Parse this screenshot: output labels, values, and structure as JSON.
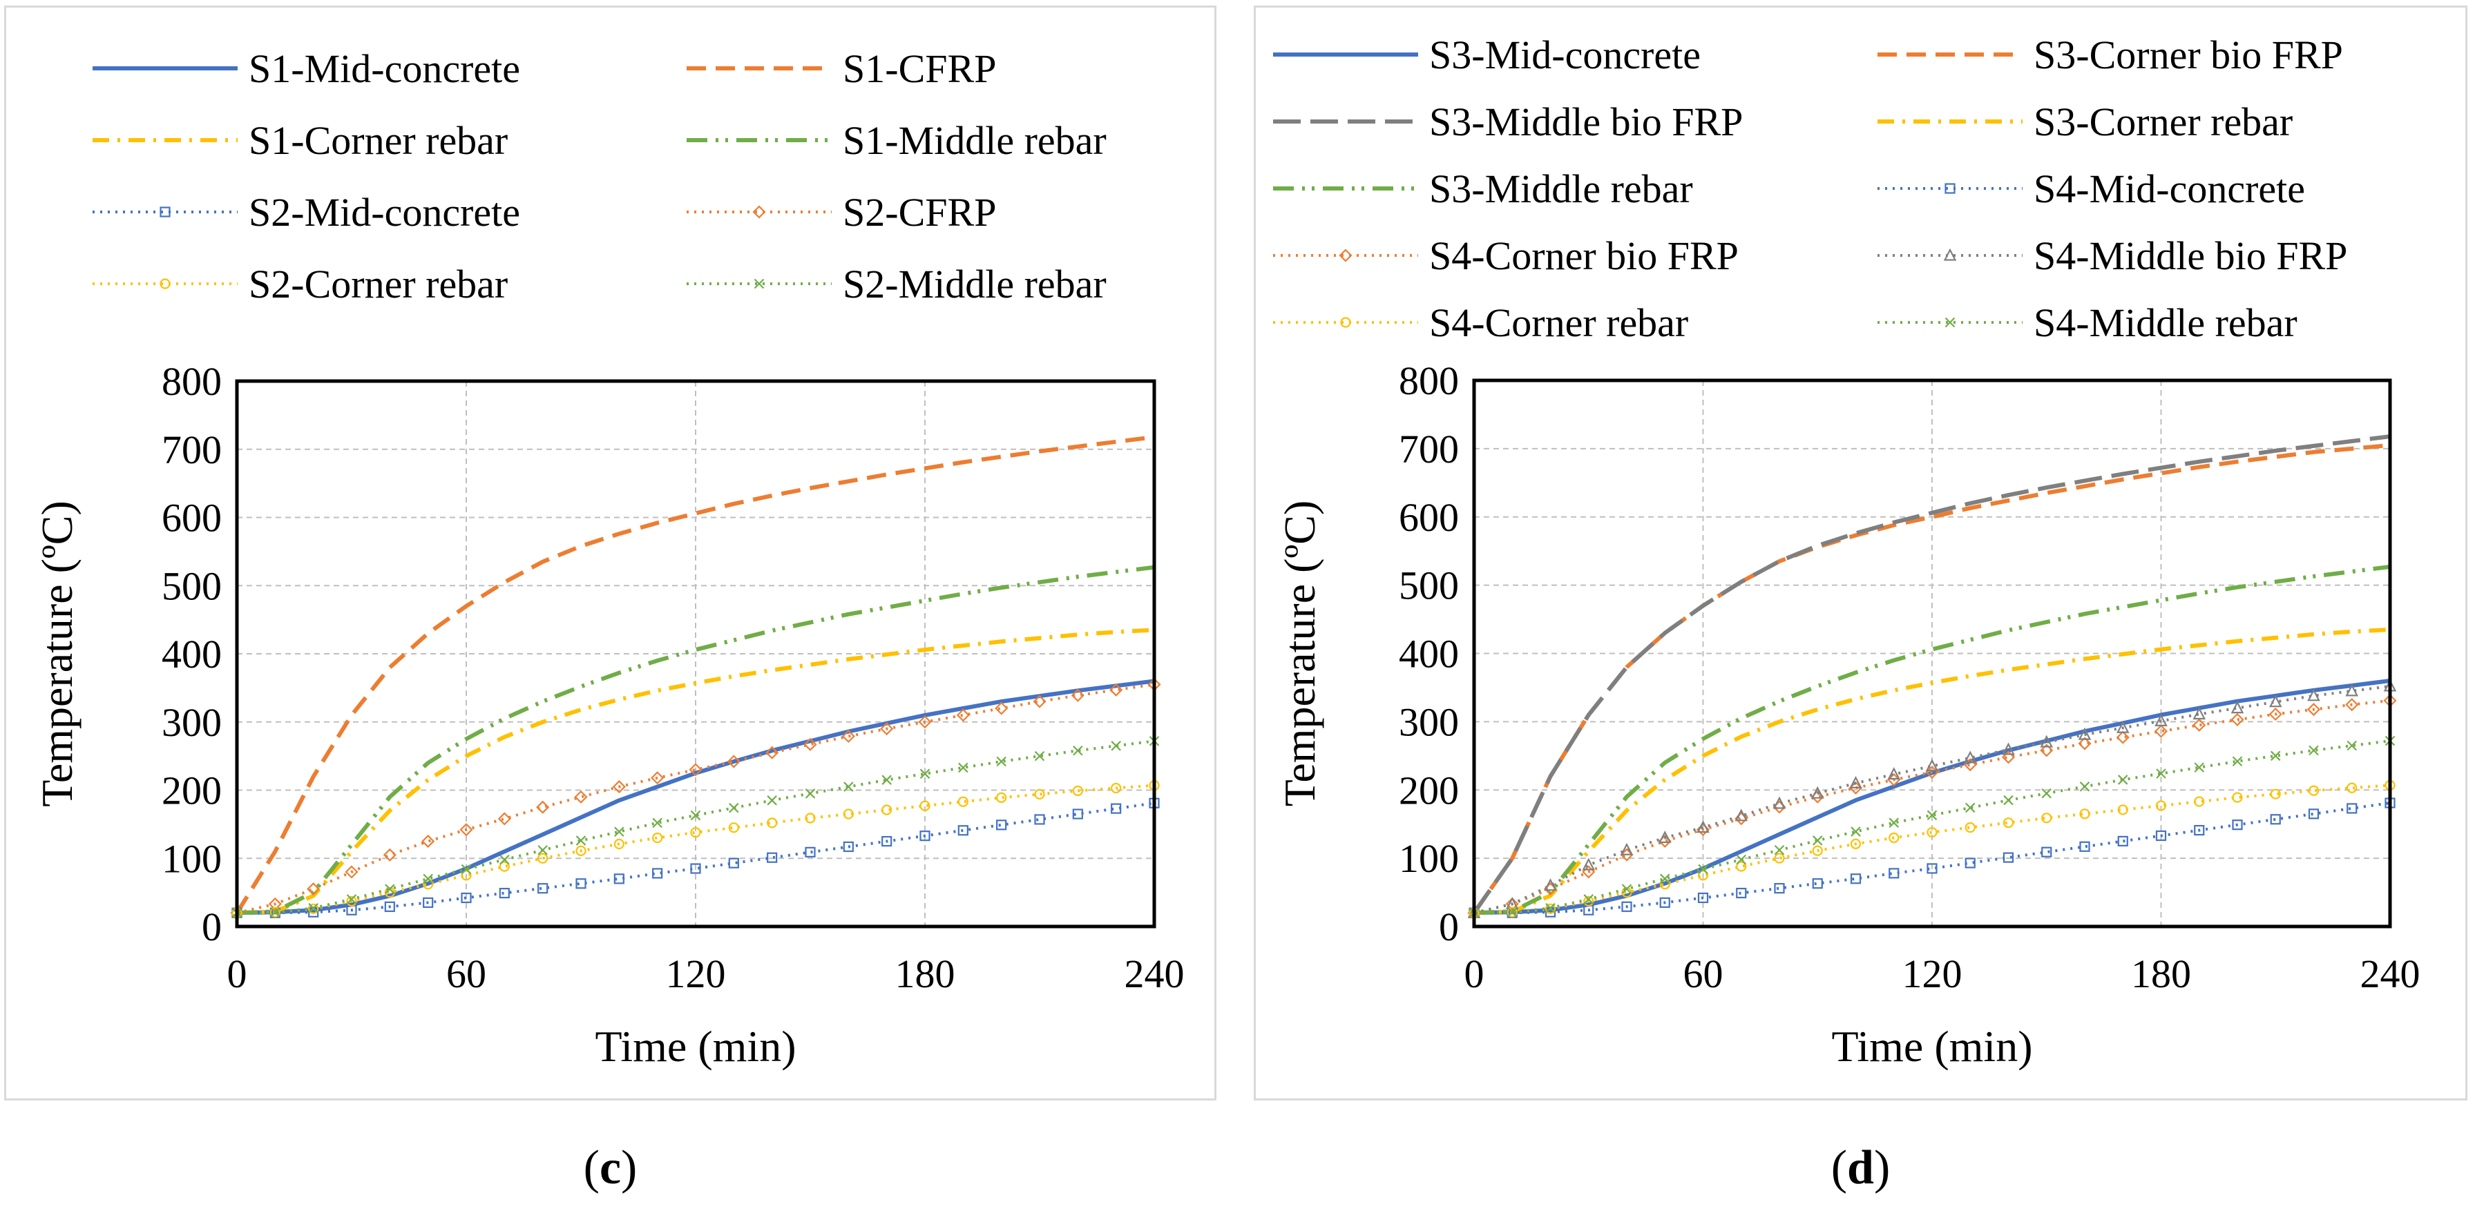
{
  "captions": {
    "c": "c",
    "d": "d"
  },
  "chart_data": [
    {
      "type": "line",
      "panel": "c",
      "xlabel": "Time (min)",
      "ylabel": "Temperature (ºC)",
      "xlim": [
        0,
        240
      ],
      "ylim": [
        0,
        800
      ],
      "xticks": [
        0,
        60,
        120,
        180,
        240
      ],
      "yticks": [
        0,
        100,
        200,
        300,
        400,
        500,
        600,
        700,
        800
      ],
      "grid": true,
      "legend_position": "top",
      "x": [
        0,
        10,
        20,
        30,
        40,
        50,
        60,
        70,
        80,
        90,
        100,
        110,
        120,
        130,
        140,
        150,
        160,
        170,
        180,
        190,
        200,
        210,
        220,
        230,
        240
      ],
      "series": [
        {
          "name": "S1-Mid-concrete",
          "color": "#4472c4",
          "style": "solid",
          "values": [
            20,
            21,
            24,
            32,
            45,
            63,
            85,
            110,
            135,
            160,
            185,
            205,
            225,
            242,
            258,
            272,
            286,
            298,
            310,
            320,
            330,
            338,
            346,
            353,
            360
          ]
        },
        {
          "name": "S1-CFRP",
          "color": "#ed7d31",
          "style": "dash",
          "values": [
            20,
            110,
            220,
            310,
            380,
            430,
            470,
            505,
            535,
            558,
            576,
            592,
            606,
            620,
            632,
            643,
            653,
            663,
            672,
            681,
            689,
            697,
            704,
            711,
            718
          ]
        },
        {
          "name": "S1-Corner rebar",
          "color": "#ffc000",
          "style": "dashdot",
          "values": [
            20,
            22,
            45,
            110,
            170,
            215,
            250,
            278,
            300,
            318,
            333,
            346,
            357,
            367,
            376,
            384,
            392,
            399,
            406,
            412,
            418,
            423,
            428,
            432,
            435
          ]
        },
        {
          "name": "S1-Middle rebar",
          "color": "#70ad47",
          "style": "dashdotdot",
          "values": [
            20,
            22,
            50,
            120,
            190,
            240,
            275,
            305,
            330,
            352,
            372,
            390,
            406,
            420,
            434,
            446,
            458,
            468,
            478,
            488,
            497,
            505,
            513,
            520,
            527
          ]
        },
        {
          "name": "S2-Mid-concrete",
          "color": "#4472c4",
          "style": "dotted",
          "marker": "square",
          "values": [
            20,
            20,
            21,
            24,
            29,
            35,
            42,
            49,
            56,
            63,
            70,
            78,
            85,
            93,
            101,
            109,
            117,
            125,
            133,
            141,
            149,
            157,
            165,
            173,
            181
          ]
        },
        {
          "name": "S2-CFRP",
          "color": "#ed7d31",
          "style": "dotted",
          "marker": "diamond",
          "values": [
            20,
            33,
            55,
            80,
            105,
            125,
            142,
            158,
            175,
            190,
            205,
            218,
            230,
            242,
            255,
            267,
            279,
            290,
            300,
            310,
            320,
            330,
            339,
            347,
            355
          ]
        },
        {
          "name": "S2-Corner rebar",
          "color": "#ffc000",
          "style": "dotted",
          "marker": "circle",
          "values": [
            20,
            21,
            26,
            37,
            50,
            62,
            75,
            88,
            100,
            111,
            121,
            130,
            138,
            145,
            152,
            159,
            165,
            171,
            177,
            183,
            189,
            194,
            199,
            203,
            207
          ]
        },
        {
          "name": "S2-Middle rebar",
          "color": "#70ad47",
          "style": "dotted",
          "marker": "x",
          "values": [
            20,
            21,
            27,
            40,
            55,
            70,
            84,
            98,
            112,
            126,
            139,
            152,
            163,
            174,
            185,
            195,
            205,
            215,
            224,
            233,
            242,
            250,
            258,
            265,
            272
          ]
        }
      ]
    },
    {
      "type": "line",
      "panel": "d",
      "xlabel": "Time (min)",
      "ylabel": "Temperature (ºC)",
      "xlim": [
        0,
        240
      ],
      "ylim": [
        0,
        800
      ],
      "xticks": [
        0,
        60,
        120,
        180,
        240
      ],
      "yticks": [
        0,
        100,
        200,
        300,
        400,
        500,
        600,
        700,
        800
      ],
      "grid": true,
      "legend_position": "top",
      "x": [
        0,
        10,
        20,
        30,
        40,
        50,
        60,
        70,
        80,
        90,
        100,
        110,
        120,
        130,
        140,
        150,
        160,
        170,
        180,
        190,
        200,
        210,
        220,
        230,
        240
      ],
      "series": [
        {
          "name": "S3-Mid-concrete",
          "color": "#4472c4",
          "style": "solid",
          "values": [
            20,
            21,
            24,
            32,
            45,
            63,
            85,
            110,
            135,
            160,
            185,
            205,
            225,
            242,
            258,
            272,
            286,
            298,
            310,
            320,
            330,
            338,
            346,
            353,
            360
          ]
        },
        {
          "name": "S3-Corner bio FRP",
          "color": "#ed7d31",
          "style": "dash",
          "values": [
            20,
            100,
            220,
            310,
            380,
            430,
            470,
            505,
            535,
            556,
            573,
            588,
            600,
            613,
            624,
            635,
            645,
            655,
            664,
            673,
            681,
            688,
            695,
            700,
            705
          ]
        },
        {
          "name": "S3-Middle bio FRP",
          "color": "#7f7f7f",
          "style": "longdash",
          "values": [
            20,
            100,
            220,
            310,
            380,
            430,
            470,
            505,
            535,
            558,
            576,
            592,
            606,
            620,
            632,
            643,
            653,
            663,
            672,
            681,
            689,
            697,
            704,
            711,
            718
          ]
        },
        {
          "name": "S3-Corner rebar",
          "color": "#ffc000",
          "style": "dashdot",
          "values": [
            20,
            22,
            45,
            110,
            170,
            215,
            250,
            278,
            300,
            318,
            333,
            346,
            357,
            367,
            376,
            384,
            392,
            399,
            406,
            412,
            418,
            423,
            428,
            432,
            435
          ]
        },
        {
          "name": "S3-Middle rebar",
          "color": "#70ad47",
          "style": "dashdotdot",
          "values": [
            20,
            22,
            50,
            120,
            190,
            240,
            275,
            305,
            330,
            352,
            372,
            390,
            406,
            420,
            434,
            446,
            458,
            468,
            478,
            488,
            497,
            505,
            513,
            520,
            527
          ]
        },
        {
          "name": "S4-Mid-concrete",
          "color": "#4472c4",
          "style": "dotted",
          "marker": "square",
          "values": [
            20,
            20,
            21,
            24,
            29,
            35,
            42,
            49,
            56,
            63,
            70,
            78,
            85,
            93,
            101,
            109,
            117,
            125,
            133,
            141,
            149,
            157,
            165,
            173,
            181
          ]
        },
        {
          "name": "S4-Corner bio FRP",
          "color": "#ed7d31",
          "style": "dotted",
          "marker": "diamond",
          "values": [
            20,
            33,
            55,
            80,
            105,
            125,
            142,
            158,
            175,
            190,
            203,
            215,
            226,
            237,
            248,
            258,
            268,
            277,
            286,
            295,
            303,
            311,
            318,
            325,
            331
          ]
        },
        {
          "name": "S4-Middle bio FRP",
          "color": "#7f7f7f",
          "style": "dotted",
          "marker": "triangle",
          "values": [
            20,
            33,
            60,
            90,
            112,
            130,
            145,
            162,
            180,
            195,
            210,
            223,
            235,
            247,
            259,
            270,
            281,
            291,
            301,
            311,
            320,
            329,
            338,
            345,
            352
          ]
        },
        {
          "name": "S4-Corner rebar",
          "color": "#ffc000",
          "style": "dotted",
          "marker": "circle",
          "values": [
            20,
            21,
            26,
            37,
            50,
            62,
            75,
            88,
            100,
            111,
            121,
            130,
            138,
            145,
            152,
            159,
            165,
            171,
            177,
            183,
            189,
            194,
            199,
            203,
            207
          ]
        },
        {
          "name": "S4-Middle rebar",
          "color": "#70ad47",
          "style": "dotted",
          "marker": "x",
          "values": [
            20,
            21,
            27,
            40,
            55,
            70,
            84,
            98,
            112,
            126,
            139,
            152,
            163,
            174,
            185,
            195,
            205,
            215,
            224,
            233,
            242,
            250,
            258,
            265,
            272
          ]
        }
      ]
    }
  ]
}
